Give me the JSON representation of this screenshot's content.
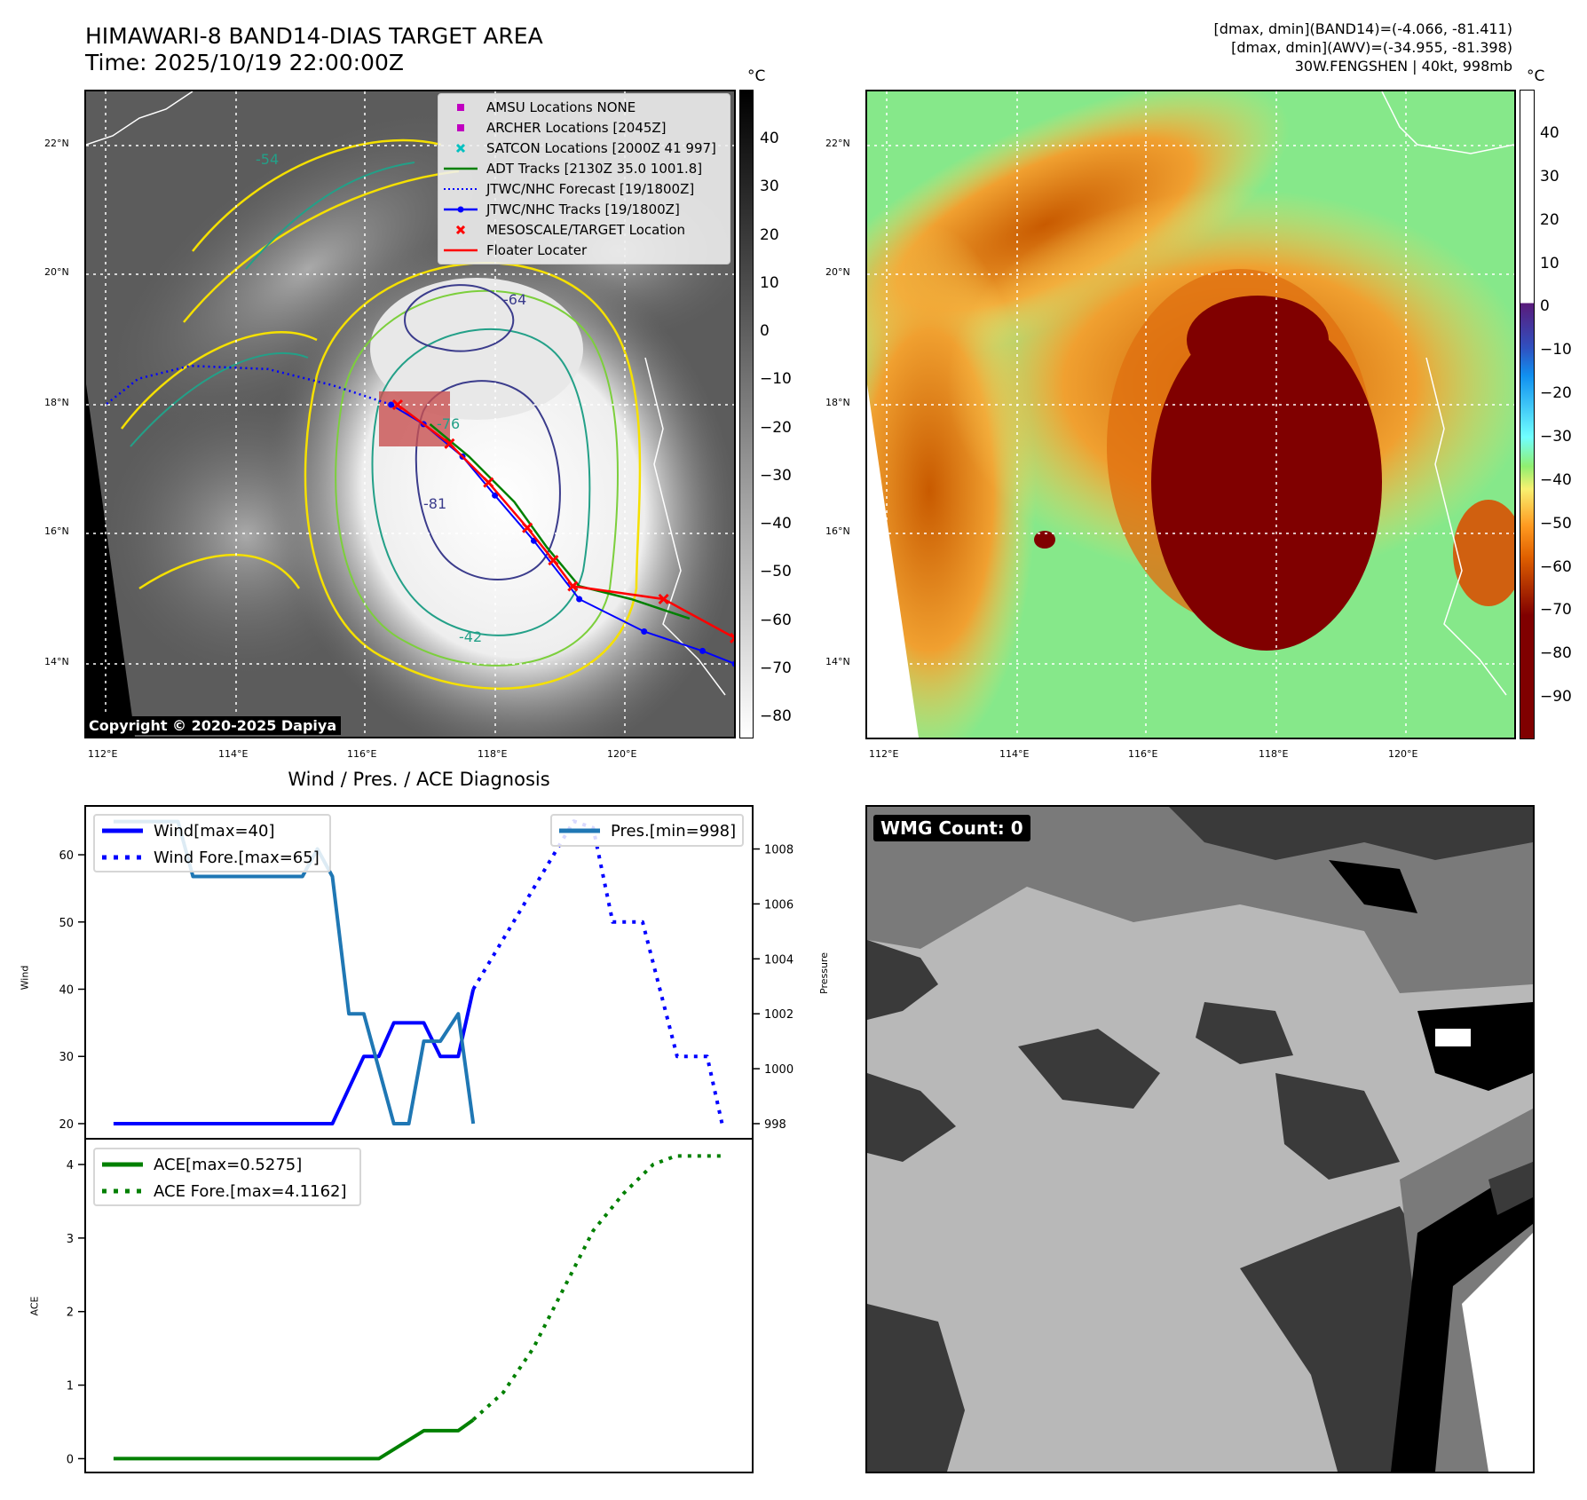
{
  "header": {
    "title": "HIMAWARI-8 BAND14-DIAS TARGET AREA",
    "time": "Time: 2025/10/19 22:00:00Z",
    "stats": [
      "[dmax, dmin](BAND14)=(-4.066, -81.411)",
      "[dmax, dmin](AWV)=(-34.955, -81.398)",
      "30W.FENGSHEN | 40kt, 998mb"
    ]
  },
  "left_map": {
    "colorbar_unit": "°C",
    "colorbar_ticks": [
      "40",
      "30",
      "20",
      "10",
      "0",
      "−10",
      "−20",
      "−30",
      "−40",
      "−50",
      "−60",
      "−70",
      "−80"
    ],
    "lat_labels": [
      "22°N",
      "20°N",
      "18°N",
      "16°N",
      "14°N"
    ],
    "lon_labels": [
      "112°E",
      "114°E",
      "116°E",
      "118°E",
      "120°E"
    ],
    "copyright": "Copyright © 2020-2025 Dapiya",
    "contour_labels": [
      "-54",
      "-42",
      "-64",
      "-81",
      "-76"
    ],
    "legend": [
      {
        "label": "AMSU Locations NONE",
        "marker": "square",
        "color": "#c000c0"
      },
      {
        "label": "ARCHER Locations [2045Z]",
        "marker": "square",
        "color": "#c000c0"
      },
      {
        "label": "SATCON Locations [2000Z 41 997]",
        "marker": "x",
        "color": "#00c0c0"
      },
      {
        "label": "ADT Tracks [2130Z 35.0 1001.8]",
        "marker": "line",
        "color": "#008000"
      },
      {
        "label": "JTWC/NHC Forecast [19/1800Z]",
        "marker": "dotted",
        "color": "#0000ff"
      },
      {
        "label": "JTWC/NHC Tracks [19/1800Z]",
        "marker": "line-dot",
        "color": "#0000ff"
      },
      {
        "label": "MESOSCALE/TARGET Location",
        "marker": "x",
        "color": "#ff0000"
      },
      {
        "label": "Floater Locater",
        "marker": "line",
        "color": "#ff0000"
      }
    ],
    "tracks": {
      "jtwc": [
        [
          121.7,
          14.0
        ],
        [
          121.2,
          14.2
        ],
        [
          120.3,
          14.5
        ],
        [
          119.3,
          15.0
        ],
        [
          118.6,
          15.9
        ],
        [
          118.0,
          16.6
        ],
        [
          117.5,
          17.2
        ],
        [
          116.9,
          17.7
        ],
        [
          116.4,
          18.0
        ]
      ],
      "forecast": [
        [
          116.4,
          18.0
        ],
        [
          115.5,
          18.3
        ],
        [
          114.5,
          18.55
        ],
        [
          113.3,
          18.6
        ],
        [
          112.5,
          18.4
        ],
        [
          112.0,
          18.0
        ]
      ],
      "floater": [
        [
          121.7,
          14.4
        ],
        [
          120.6,
          15.0
        ],
        [
          119.2,
          15.2
        ],
        [
          118.9,
          15.6
        ],
        [
          118.5,
          16.1
        ],
        [
          117.9,
          16.8
        ],
        [
          117.3,
          17.4
        ],
        [
          116.5,
          18.0
        ]
      ],
      "adt": [
        [
          121.0,
          14.7
        ],
        [
          120.1,
          15.0
        ],
        [
          119.3,
          15.2
        ],
        [
          118.8,
          15.8
        ],
        [
          118.3,
          16.5
        ],
        [
          117.6,
          17.2
        ],
        [
          117.0,
          17.7
        ]
      ]
    }
  },
  "right_map": {
    "colorbar_unit": "°C",
    "colorbar_ticks": [
      "40",
      "30",
      "20",
      "10",
      "0",
      "−10",
      "−20",
      "−30",
      "−40",
      "−50",
      "−60",
      "−70",
      "−80",
      "−90"
    ],
    "lat_labels": [
      "22°N",
      "20°N",
      "18°N",
      "16°N",
      "14°N"
    ],
    "lon_labels": [
      "112°E",
      "114°E",
      "116°E",
      "118°E",
      "120°E"
    ]
  },
  "diagnosis": {
    "title": "Wind / Pres. / ACE Diagnosis"
  },
  "wmg": {
    "label": "WMG Count: 0"
  },
  "chart_data": [
    {
      "type": "line",
      "title": "Wind / Pres. / ACE Diagnosis",
      "ylabel": "Wind",
      "y2label": "Pressure",
      "xlim": [
        -1.95,
        42.7
      ],
      "ylim": [
        17.75,
        67.4
      ],
      "y2lim": [
        997.45,
        1009.6
      ],
      "yticks": [
        20,
        30,
        40,
        50,
        60
      ],
      "y2ticks": [
        998,
        1000,
        1002,
        1004,
        1006,
        1008
      ],
      "series": [
        {
          "name": "Wind[max=40]",
          "axis": "left",
          "style": "solid",
          "color": "#0000ff",
          "x": [
            0,
            14.6,
            16.7,
            17.7,
            18.7,
            20.7,
            21.8,
            23,
            24
          ],
          "y": [
            20,
            20,
            30,
            30,
            35,
            35,
            30,
            30,
            40
          ]
        },
        {
          "name": "Wind Fore.[max=65]",
          "axis": "left",
          "style": "dotted",
          "color": "#0000ff",
          "x": [
            24,
            30.7,
            32,
            33.3,
            35.3,
            37.6,
            39.6,
            40.6
          ],
          "y": [
            40,
            65,
            64,
            50,
            50,
            30,
            30,
            20
          ]
        },
        {
          "name": "Pres.[min=998]",
          "axis": "right",
          "style": "solid",
          "color": "#1f77b4",
          "x": [
            0,
            4.3,
            5.3,
            12.6,
            13.6,
            14.6,
            15.7,
            16.7,
            18.7,
            19.7,
            20.7,
            21.8,
            23,
            24
          ],
          "y": [
            1009,
            1009,
            1007,
            1007,
            1008,
            1007,
            1002,
            1002,
            998,
            998,
            1001,
            1001,
            1002,
            998
          ]
        }
      ],
      "legend_left": [
        "Wind[max=40]",
        "Wind Fore.[max=65]"
      ],
      "legend_right": [
        "Pres.[min=998]"
      ]
    },
    {
      "type": "line",
      "ylabel": "ACE",
      "xlim": [
        -1.95,
        42.7
      ],
      "ylim": [
        -0.2,
        4.35
      ],
      "yticks": [
        0,
        1,
        2,
        3,
        4
      ],
      "series": [
        {
          "name": "ACE[max=0.5275]",
          "style": "solid",
          "color": "#008000",
          "x": [
            0,
            17.7,
            20.7,
            23,
            24
          ],
          "y": [
            0,
            0,
            0.38,
            0.38,
            0.5275
          ]
        },
        {
          "name": "ACE Fore.[max=4.1162]",
          "style": "dotted",
          "color": "#008000",
          "x": [
            24,
            26,
            28,
            30,
            32,
            34,
            36,
            37.5,
            40.6
          ],
          "y": [
            0.53,
            0.9,
            1.5,
            2.3,
            3.1,
            3.6,
            4.0,
            4.1162,
            4.1162
          ]
        }
      ]
    }
  ]
}
